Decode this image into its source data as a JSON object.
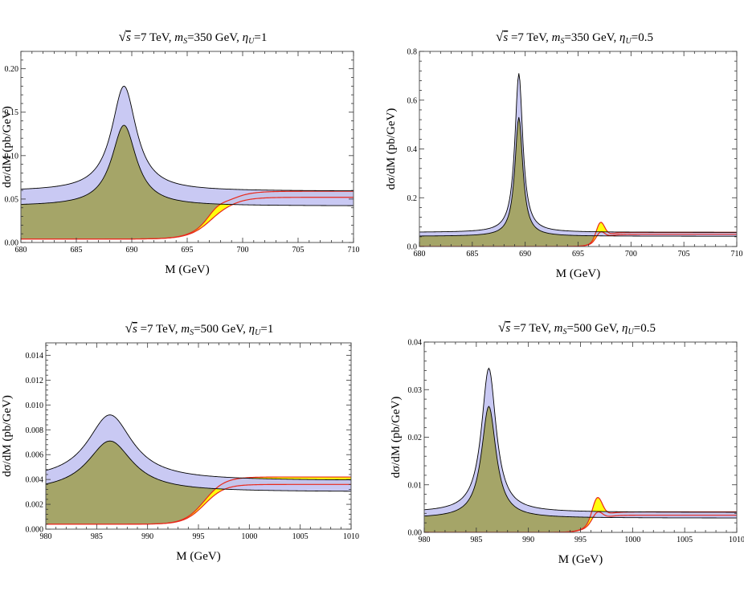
{
  "chart_data": [
    {
      "type": "area",
      "title_parts": {
        "sqrt": "√",
        "s": "s",
        "energy": " =7 TeV, ",
        "ms": "m",
        "ms_sub": "S",
        "mass": "=350 GeV, ",
        "eta": "η",
        "eta_sub": "U",
        "eta_val": "=1"
      },
      "xlabel": "M (GeV)",
      "ylabel": "dσ/dM (pb/GeV)",
      "xlim": [
        680,
        710
      ],
      "ylim": [
        0,
        0.22
      ],
      "xticks": [
        680,
        685,
        690,
        695,
        700,
        705,
        710
      ],
      "xtick_labels": [
        "680",
        "685",
        "690",
        "695",
        "700",
        "705",
        "710"
      ],
      "yticks": [
        0,
        0.05,
        0.1,
        0.15,
        0.2
      ],
      "ytick_labels": [
        "0.00",
        "0.05",
        "0.10",
        "0.15",
        "0.20"
      ],
      "signal": {
        "peak_x": 689.3,
        "width": 1.35,
        "peak_upper": 0.18,
        "peak_lower": 0.135,
        "tail_upper": 0.059,
        "tail_lower": 0.042
      },
      "background": {
        "x0": 697.4,
        "k": 2.0,
        "start_y": 0.004,
        "plateau_upper": 0.059,
        "plateau_lower": 0.052,
        "bump_x": 697.6,
        "bump_upper": 0.065,
        "bump_lower": 0.053
      }
    },
    {
      "type": "area",
      "title_parts": {
        "sqrt": "√",
        "s": "s",
        "energy": " =7 TeV, ",
        "ms": "m",
        "ms_sub": "S",
        "mass": "=350 GeV, ",
        "eta": "η",
        "eta_sub": "U",
        "eta_val": "=0.5"
      },
      "xlabel": "M (GeV)",
      "ylabel": "dσ/dM (pb/GeV)",
      "xlim": [
        680,
        710
      ],
      "ylim": [
        0,
        0.8
      ],
      "xticks": [
        680,
        685,
        690,
        695,
        700,
        705,
        710
      ],
      "xtick_labels": [
        "680",
        "685",
        "690",
        "695",
        "700",
        "705",
        "710"
      ],
      "yticks": [
        0,
        0.2,
        0.4,
        0.6,
        0.8
      ],
      "ytick_labels": [
        "0.0",
        "0.2",
        "0.4",
        "0.6",
        "0.8"
      ],
      "signal": {
        "peak_x": 689.4,
        "width": 0.45,
        "peak_upper": 0.71,
        "peak_lower": 0.53,
        "tail_upper": 0.058,
        "tail_lower": 0.042
      },
      "background": {
        "x0": 697.0,
        "k": 1.0,
        "start_y": 0.0,
        "plateau_upper": 0.058,
        "plateau_lower": 0.05,
        "bump_x": 697.1,
        "bump_upper": 0.125,
        "bump_lower": 0.082
      }
    },
    {
      "type": "area",
      "title_parts": {
        "sqrt": "√",
        "s": "s",
        "energy": " =7 TeV, ",
        "ms": "m",
        "ms_sub": "S",
        "mass": "=500 GeV, ",
        "eta": "η",
        "eta_sub": "U",
        "eta_val": "=1"
      },
      "xlabel": "M (GeV)",
      "ylabel": "dσ/dM (pb/GeV)",
      "xlim": [
        980,
        1010
      ],
      "ylim": [
        0,
        0.015
      ],
      "xticks": [
        980,
        985,
        990,
        995,
        1000,
        1005,
        1010
      ],
      "xtick_labels": [
        "980",
        "985",
        "990",
        "995",
        "1000",
        "1005",
        "1010"
      ],
      "yticks": [
        0,
        0.002,
        0.004,
        0.006,
        0.008,
        0.01,
        0.012,
        0.014
      ],
      "ytick_labels": [
        "0.000",
        "0.002",
        "0.004",
        "0.006",
        "0.008",
        "0.010",
        "0.012",
        "0.014"
      ],
      "signal": {
        "peak_x": 986.3,
        "width": 2.7,
        "peak_upper": 0.0092,
        "peak_lower": 0.0071,
        "tail_upper": 0.0039,
        "tail_lower": 0.003
      },
      "background": {
        "x0": 995.6,
        "k": 1.8,
        "start_y": 0.0004,
        "plateau_upper": 0.0042,
        "plateau_lower": 0.0036,
        "bump_x": 997.5,
        "bump_upper": 0.0039,
        "bump_lower": 0.0035
      }
    },
    {
      "type": "area",
      "title_parts": {
        "sqrt": "√",
        "s": "s",
        "energy": " =7 TeV, ",
        "ms": "m",
        "ms_sub": "S",
        "mass": "=500 GeV, ",
        "eta": "η",
        "eta_sub": "U",
        "eta_val": "=0.5"
      },
      "xlabel": "M (GeV)",
      "ylabel": "dσ/dM (pb/GeV)",
      "xlim": [
        980,
        1010
      ],
      "ylim": [
        0,
        0.04
      ],
      "xticks": [
        980,
        985,
        990,
        995,
        1000,
        1005,
        1010
      ],
      "xtick_labels": [
        "980",
        "985",
        "990",
        "995",
        "1000",
        "1005",
        "1010"
      ],
      "yticks": [
        0,
        0.01,
        0.02,
        0.03,
        0.04
      ],
      "ytick_labels": [
        "0.00",
        "0.01",
        "0.02",
        "0.03",
        "0.04"
      ],
      "signal": {
        "peak_x": 986.2,
        "width": 0.85,
        "peak_upper": 0.0345,
        "peak_lower": 0.0265,
        "tail_upper": 0.0042,
        "tail_lower": 0.003
      },
      "background": {
        "x0": 996.2,
        "k": 1.2,
        "start_y": 0.0,
        "plateau_upper": 0.0043,
        "plateau_lower": 0.0036,
        "bump_x": 996.6,
        "bump_upper": 0.0088,
        "bump_lower": 0.0055
      }
    }
  ],
  "colors": {
    "signal_fill": "#c6c6f2",
    "background_fill": "#ffff00",
    "overlap_fill": "#a0a060",
    "background_line": "#e8291c",
    "outline": "#000000",
    "frame": "#555555"
  }
}
